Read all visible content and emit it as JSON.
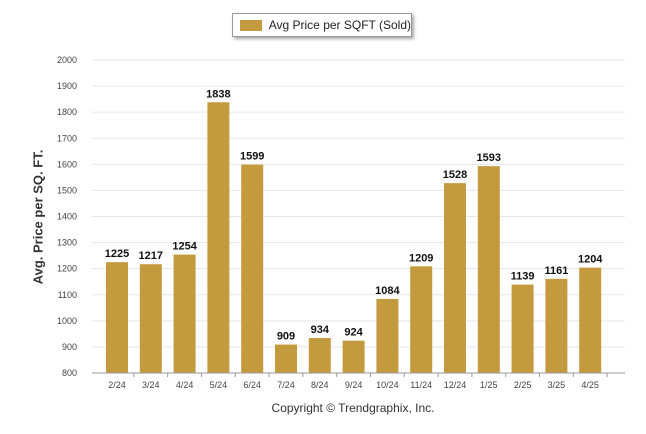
{
  "legend": {
    "label": "Avg Price per SQFT (Sold)"
  },
  "footer": {
    "copyright": "Copyright © Trendgraphix, Inc."
  },
  "colors": {
    "bar": "#c49a3e",
    "grid": "#e6e6e6",
    "axis": "#999999"
  },
  "chart_data": {
    "type": "bar",
    "categories": [
      "2/24",
      "3/24",
      "4/24",
      "5/24",
      "6/24",
      "7/24",
      "8/24",
      "9/24",
      "10/24",
      "11/24",
      "12/24",
      "1/25",
      "2/25",
      "3/25",
      "4/25"
    ],
    "series": [
      {
        "name": "Avg Price per SQFT (Sold)",
        "values": [
          1225,
          1217,
          1254,
          1838,
          1599,
          909,
          934,
          924,
          1084,
          1209,
          1528,
          1593,
          1139,
          1161,
          1204
        ]
      }
    ],
    "ylabel": "Avg. Price per SQ. FT.",
    "xlabel": "",
    "ylim": [
      800,
      2000
    ],
    "yticks": [
      800,
      900,
      1000,
      1100,
      1200,
      1300,
      1400,
      1500,
      1600,
      1700,
      1800,
      1900,
      2000
    ],
    "grid": true,
    "data_labels": true,
    "legend_position": "top"
  }
}
